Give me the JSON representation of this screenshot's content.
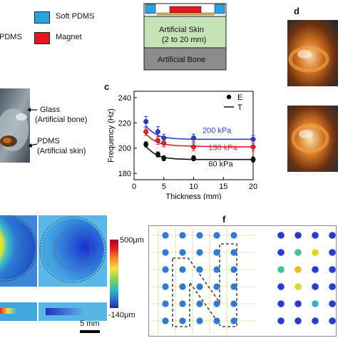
{
  "panels": {
    "c": "c",
    "d": "d",
    "f": "f"
  },
  "legend_top": {
    "cut_label": "PDMS",
    "soft_pdms": "Soft PDMS",
    "magnet": "Magnet",
    "soft_pdms_color": "#29a3e0",
    "magnet_color": "#e8141e"
  },
  "schematic": {
    "skin_label_1": "Artificial Skin",
    "skin_label_2": "(2 to 20 mm)",
    "bone_label": "Artificial Bone",
    "skin_color": "#c6e3b8",
    "bone_color": "#8c8c8c"
  },
  "photo_labels": {
    "glass_1": "Glass",
    "glass_2": "(Artificial bone)",
    "pdms_1": "PDMS",
    "pdms_2": "(Artificial skin)"
  },
  "colorbar": {
    "max_label": "500μm",
    "min_label": "-140μm",
    "scale_bar": "5 mm"
  },
  "chart_data": {
    "type": "scatter",
    "xlabel": "Thickness (mm)",
    "ylabel": "Frequency (Hz)",
    "xlim": [
      0,
      20
    ],
    "ylim": [
      175,
      245
    ],
    "xticks": [
      0,
      5,
      10,
      15,
      20
    ],
    "yticks": [
      180,
      200,
      220,
      240
    ],
    "legend": [
      {
        "marker": "●",
        "label": "E"
      },
      {
        "marker": "—",
        "label": "T"
      }
    ],
    "series": [
      {
        "name": "200 kPa",
        "color": "#2b3fd6",
        "x": [
          2,
          4,
          5,
          10,
          20
        ],
        "y": [
          221,
          213,
          208,
          208,
          207
        ],
        "err": [
          4,
          4,
          3,
          3,
          3
        ],
        "fit": [
          [
            2,
            217
          ],
          [
            3,
            213
          ],
          [
            4,
            210
          ],
          [
            5,
            208.5
          ],
          [
            7,
            207.5
          ],
          [
            10,
            207
          ],
          [
            15,
            207
          ],
          [
            20,
            207
          ]
        ]
      },
      {
        "name": "130 kPa",
        "color": "#e0242a",
        "x": [
          2,
          4,
          5,
          10,
          20
        ],
        "y": [
          213,
          206,
          204,
          201,
          201
        ],
        "err": [
          3,
          3,
          3,
          3,
          3
        ],
        "fit": [
          [
            2,
            211
          ],
          [
            3,
            207
          ],
          [
            4,
            204.5
          ],
          [
            5,
            203
          ],
          [
            7,
            202
          ],
          [
            10,
            201.5
          ],
          [
            15,
            201
          ],
          [
            20,
            201
          ]
        ]
      },
      {
        "name": "60 kPa",
        "color": "#111111",
        "x": [
          2,
          4,
          5,
          10,
          20
        ],
        "y": [
          203,
          195,
          192,
          192,
          191
        ],
        "err": [
          2,
          2,
          2,
          2,
          2
        ],
        "fit": [
          [
            2,
            201
          ],
          [
            3,
            197
          ],
          [
            4,
            194
          ],
          [
            5,
            192.5
          ],
          [
            7,
            191.5
          ],
          [
            10,
            191
          ],
          [
            15,
            191
          ],
          [
            20,
            191
          ]
        ]
      }
    ]
  },
  "grid_f": {
    "left_rows": 6,
    "left_cols": 5,
    "right_rows": 6,
    "right_cols": 4,
    "dot_color": "#2e7bd0"
  }
}
